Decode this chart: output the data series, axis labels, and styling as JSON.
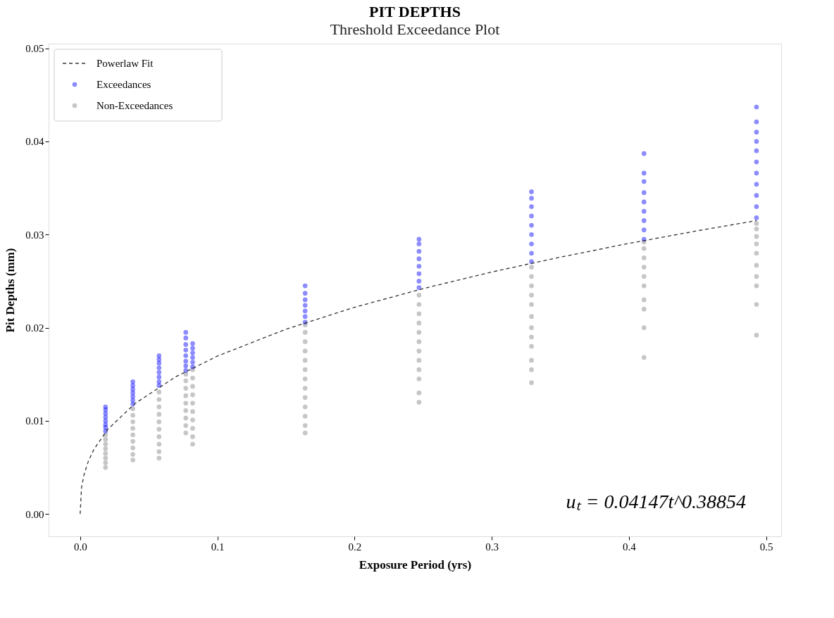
{
  "chart_data": {
    "type": "scatter",
    "title": "PIT DEPTHS",
    "subtitle": "Threshold Exceedance Plot",
    "xlabel": "Exposure Period (yrs)",
    "ylabel": "Pit Depths (mm)",
    "xlim": [
      -0.023,
      0.511
    ],
    "ylim": [
      -0.0024,
      0.0505
    ],
    "xticks": [
      {
        "value": 0,
        "label": "0.0"
      },
      {
        "value": 0.1,
        "label": "0.1"
      },
      {
        "value": 0.2,
        "label": "0.2"
      },
      {
        "value": 0.3,
        "label": "0.3"
      },
      {
        "value": 0.4,
        "label": "0.4"
      },
      {
        "value": 0.5,
        "label": "0.5"
      }
    ],
    "yticks": [
      {
        "value": 0,
        "label": "0.00"
      },
      {
        "value": 0.01,
        "label": "0.01"
      },
      {
        "value": 0.02,
        "label": "0.02"
      },
      {
        "value": 0.03,
        "label": "0.03"
      },
      {
        "value": 0.04,
        "label": "0.04"
      },
      {
        "value": 0.05,
        "label": "0.05"
      }
    ],
    "grid": false,
    "legend": "top left",
    "marker": "circle",
    "annotations": [
      "uₜ = 0.04147t^0.38854"
    ],
    "series": [
      {
        "name": "Powerlaw Fit",
        "type": "line",
        "line_style": "dashed",
        "marker": "none",
        "color": "#333333",
        "x": [
          0,
          0.001,
          0.003,
          0.006,
          0.01,
          0.02,
          0.04,
          0.07,
          0.1,
          0.15,
          0.2,
          0.25,
          0.3,
          0.35,
          0.4,
          0.45,
          0.493
        ],
        "values": [
          0,
          0.00283,
          0.00434,
          0.00568,
          0.00693,
          0.00907,
          0.01187,
          0.01476,
          0.01695,
          0.01984,
          0.02219,
          0.0242,
          0.02598,
          0.02758,
          0.02905,
          0.03041,
          0.0315
        ]
      },
      {
        "name": "Exceedances",
        "type": "scatter",
        "color": "#0000ff",
        "x": [
          0.0185,
          0.0185,
          0.0185,
          0.0185,
          0.0185,
          0.0185,
          0.0185,
          0.0185,
          0.0384,
          0.0384,
          0.0384,
          0.0384,
          0.0384,
          0.0384,
          0.0384,
          0.0575,
          0.0575,
          0.0575,
          0.0575,
          0.0575,
          0.0575,
          0.0575,
          0.0575,
          0.077,
          0.077,
          0.077,
          0.077,
          0.077,
          0.077,
          0.077,
          0.077,
          0.082,
          0.082,
          0.082,
          0.082,
          0.082,
          0.082,
          0.164,
          0.164,
          0.164,
          0.164,
          0.164,
          0.164,
          0.164,
          0.247,
          0.247,
          0.247,
          0.247,
          0.247,
          0.247,
          0.247,
          0.247,
          0.329,
          0.329,
          0.329,
          0.329,
          0.329,
          0.329,
          0.329,
          0.329,
          0.329,
          0.411,
          0.411,
          0.411,
          0.411,
          0.411,
          0.411,
          0.411,
          0.411,
          0.411,
          0.493,
          0.493,
          0.493,
          0.493,
          0.493,
          0.493,
          0.493,
          0.493,
          0.493,
          0.493,
          0.493
        ],
        "values": [
          0.0089,
          0.0093,
          0.0096,
          0.01,
          0.0104,
          0.0108,
          0.0112,
          0.0115,
          0.0118,
          0.0122,
          0.0126,
          0.013,
          0.0134,
          0.0138,
          0.0142,
          0.0138,
          0.0142,
          0.0147,
          0.0152,
          0.0157,
          0.0162,
          0.0166,
          0.017,
          0.0154,
          0.0159,
          0.0164,
          0.017,
          0.0176,
          0.0182,
          0.0189,
          0.0195,
          0.0158,
          0.0163,
          0.0168,
          0.0173,
          0.0178,
          0.0183,
          0.0206,
          0.0212,
          0.0218,
          0.0224,
          0.023,
          0.0237,
          0.0245,
          0.0243,
          0.025,
          0.0258,
          0.0266,
          0.0274,
          0.0282,
          0.029,
          0.0295,
          0.0271,
          0.028,
          0.029,
          0.03,
          0.031,
          0.032,
          0.033,
          0.0339,
          0.0346,
          0.0295,
          0.0305,
          0.0315,
          0.0325,
          0.0335,
          0.0345,
          0.0357,
          0.0366,
          0.0387,
          0.0318,
          0.033,
          0.0342,
          0.0354,
          0.0366,
          0.0378,
          0.039,
          0.04,
          0.041,
          0.0421,
          0.0437
        ]
      },
      {
        "name": "Non-Exceedances",
        "type": "scatter",
        "color": "#808080",
        "x": [
          0.0185,
          0.0185,
          0.0185,
          0.0185,
          0.0185,
          0.0185,
          0.0185,
          0.0185,
          0.0384,
          0.0384,
          0.0384,
          0.0384,
          0.0384,
          0.0384,
          0.0384,
          0.0384,
          0.0384,
          0.0575,
          0.0575,
          0.0575,
          0.0575,
          0.0575,
          0.0575,
          0.0575,
          0.0575,
          0.0575,
          0.0575,
          0.077,
          0.077,
          0.077,
          0.077,
          0.077,
          0.077,
          0.077,
          0.077,
          0.077,
          0.082,
          0.082,
          0.082,
          0.082,
          0.082,
          0.082,
          0.082,
          0.082,
          0.082,
          0.082,
          0.164,
          0.164,
          0.164,
          0.164,
          0.164,
          0.164,
          0.164,
          0.164,
          0.164,
          0.164,
          0.164,
          0.164,
          0.164,
          0.247,
          0.247,
          0.247,
          0.247,
          0.247,
          0.247,
          0.247,
          0.247,
          0.247,
          0.247,
          0.247,
          0.247,
          0.329,
          0.329,
          0.329,
          0.329,
          0.329,
          0.329,
          0.329,
          0.329,
          0.329,
          0.329,
          0.329,
          0.329,
          0.411,
          0.411,
          0.411,
          0.411,
          0.411,
          0.411,
          0.411,
          0.411,
          0.411,
          0.411,
          0.493,
          0.493,
          0.493,
          0.493,
          0.493,
          0.493,
          0.493,
          0.493,
          0.493,
          0.493
        ],
        "values": [
          0.005,
          0.0055,
          0.006,
          0.0065,
          0.007,
          0.0075,
          0.008,
          0.0085,
          0.0058,
          0.0064,
          0.0071,
          0.0078,
          0.0085,
          0.0092,
          0.0099,
          0.0106,
          0.0113,
          0.006,
          0.0067,
          0.0075,
          0.0083,
          0.0091,
          0.0099,
          0.0107,
          0.0115,
          0.0123,
          0.0131,
          0.0087,
          0.0095,
          0.0103,
          0.0111,
          0.0119,
          0.0127,
          0.0135,
          0.0143,
          0.015,
          0.0075,
          0.0083,
          0.0092,
          0.0101,
          0.011,
          0.0119,
          0.0128,
          0.0137,
          0.0146,
          0.0155,
          0.0087,
          0.0095,
          0.0105,
          0.0115,
          0.0125,
          0.0135,
          0.0145,
          0.0155,
          0.0165,
          0.0175,
          0.0185,
          0.0195,
          0.0203,
          0.012,
          0.013,
          0.0145,
          0.0155,
          0.0165,
          0.0175,
          0.0185,
          0.0195,
          0.0205,
          0.0215,
          0.0225,
          0.0235,
          0.0141,
          0.0155,
          0.0165,
          0.018,
          0.019,
          0.02,
          0.0212,
          0.0225,
          0.0235,
          0.0245,
          0.0255,
          0.0265,
          0.0168,
          0.02,
          0.022,
          0.023,
          0.0245,
          0.0255,
          0.0265,
          0.0275,
          0.0285,
          0.0292,
          0.0192,
          0.0225,
          0.0245,
          0.0255,
          0.0267,
          0.028,
          0.029,
          0.0298,
          0.0306,
          0.0312
        ]
      }
    ]
  }
}
